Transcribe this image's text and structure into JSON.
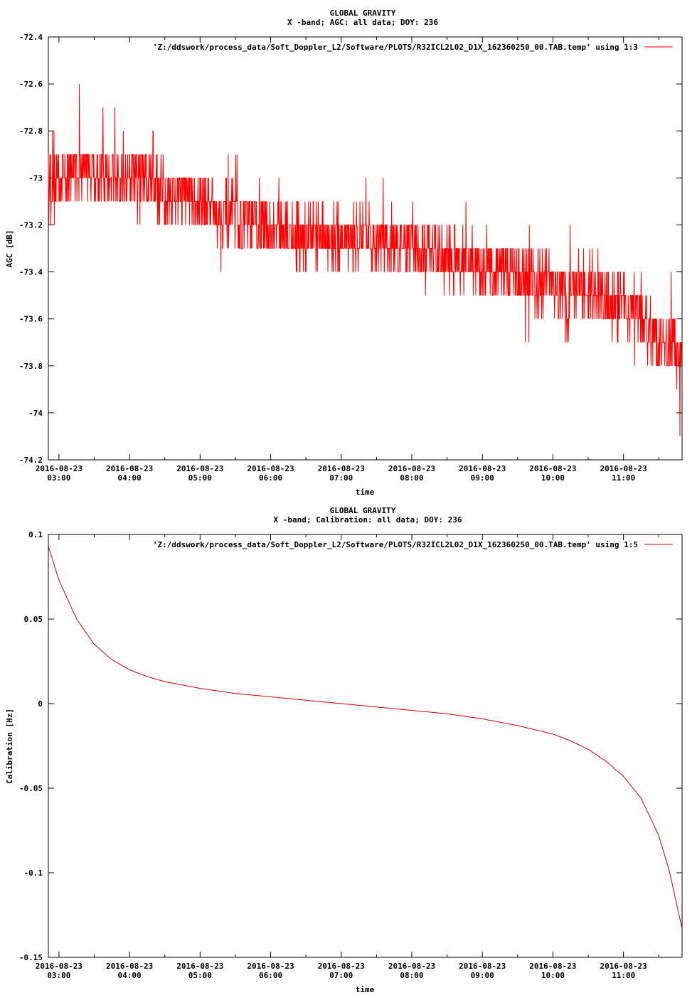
{
  "chart_data": [
    {
      "type": "line",
      "title": "GLOBAL GRAVITY",
      "subtitle": "X -band; AGC: all data; DOY: 236",
      "xlabel": "time",
      "ylabel": "AGC [dB]",
      "ylim": [
        -74.2,
        -72.4
      ],
      "yticks": [
        "-72.4",
        "-72.6",
        "-72.8",
        "-73",
        "-73.2",
        "-73.4",
        "-73.6",
        "-73.8",
        "-74",
        "-74.2"
      ],
      "ytick_values": [
        -72.4,
        -72.6,
        -72.8,
        -73.0,
        -73.2,
        -73.4,
        -73.6,
        -73.8,
        -74.0,
        -74.2
      ],
      "xlim": [
        2.85,
        11.83
      ],
      "xtick_hours": [
        3,
        4,
        5,
        6,
        7,
        8,
        9,
        10,
        11
      ],
      "xtick_dates": [
        "2016-08-23",
        "2016-08-23",
        "2016-08-23",
        "2016-08-23",
        "2016-08-23",
        "2016-08-23",
        "2016-08-23",
        "2016-08-23",
        "2016-08-23"
      ],
      "xtick_times": [
        "03:00",
        "04:00",
        "05:00",
        "06:00",
        "07:00",
        "08:00",
        "09:00",
        "10:00",
        "11:00"
      ],
      "legend": "'Z:/ddswork/process_data/Soft_Doppler_L2/Software/PLOTS/R32ICL2L02_D1X_162360250_00.TAB.temp' using 1:3",
      "legend_position": "top-right",
      "color": "#ff0000",
      "series": [
        {
          "x": [
            2.85,
            3.0,
            3.25,
            3.5,
            3.75,
            4.0,
            4.25,
            4.5,
            4.75,
            5.0,
            5.25,
            5.5,
            5.75,
            6.0,
            6.5,
            7.0,
            7.5,
            8.0,
            8.5,
            9.0,
            9.5,
            10.0,
            10.25,
            10.5,
            10.75,
            11.0,
            11.25,
            11.5,
            11.83
          ],
          "y": [
            -73.0,
            -72.98,
            -72.96,
            -72.97,
            -73.0,
            -73.0,
            -73.02,
            -73.05,
            -73.06,
            -73.1,
            -73.14,
            -73.16,
            -73.2,
            -73.22,
            -73.25,
            -73.26,
            -73.27,
            -73.3,
            -73.33,
            -73.38,
            -73.42,
            -73.46,
            -73.48,
            -73.5,
            -73.53,
            -73.54,
            -73.58,
            -73.7,
            -73.75
          ]
        }
      ]
    },
    {
      "type": "line",
      "title": "GLOBAL GRAVITY",
      "subtitle": "X -band; Calibration: all data; DOY: 236",
      "xlabel": "time",
      "ylabel": "Calibration [Hz]",
      "ylim": [
        -0.15,
        0.1
      ],
      "yticks": [
        "0.1",
        "0.05",
        "0",
        "-0.05",
        "-0.1",
        "-0.15"
      ],
      "ytick_values": [
        0.1,
        0.05,
        0.0,
        -0.05,
        -0.1,
        -0.15
      ],
      "xlim": [
        2.85,
        11.83
      ],
      "xtick_hours": [
        3,
        4,
        5,
        6,
        7,
        8,
        9,
        10,
        11
      ],
      "xtick_dates": [
        "2016-08-23",
        "2016-08-23",
        "2016-08-23",
        "2016-08-23",
        "2016-08-23",
        "2016-08-23",
        "2016-08-23",
        "2016-08-23",
        "2016-08-23"
      ],
      "xtick_times": [
        "03:00",
        "04:00",
        "05:00",
        "06:00",
        "07:00",
        "08:00",
        "09:00",
        "10:00",
        "11:00"
      ],
      "legend": "'Z:/ddswork/process_data/Soft_Doppler_L2/Software/PLOTS/R32ICL2L02_D1X_162360250_00.TAB.temp' using 1:5",
      "legend_position": "top-right",
      "color": "#cc0000",
      "series": [
        {
          "x": [
            2.85,
            3.0,
            3.25,
            3.5,
            3.75,
            4.0,
            4.25,
            4.5,
            5.0,
            5.5,
            6.0,
            6.5,
            7.0,
            7.5,
            8.0,
            8.5,
            9.0,
            9.5,
            10.0,
            10.25,
            10.5,
            10.75,
            11.0,
            11.25,
            11.5,
            11.65,
            11.83
          ],
          "y": [
            0.093,
            0.073,
            0.05,
            0.035,
            0.026,
            0.02,
            0.016,
            0.013,
            0.009,
            0.006,
            0.004,
            0.002,
            0.0,
            -0.002,
            -0.004,
            -0.006,
            -0.009,
            -0.013,
            -0.018,
            -0.022,
            -0.027,
            -0.034,
            -0.043,
            -0.056,
            -0.078,
            -0.099,
            -0.133
          ]
        }
      ]
    }
  ]
}
